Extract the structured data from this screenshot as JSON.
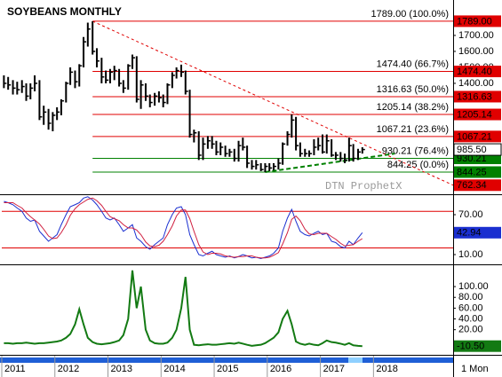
{
  "chart_data": [
    {
      "type": "hlc",
      "title": "SOYBEANS MONTHLY",
      "watermark": "DTN ProphetX",
      "timeframe": "1 Mon",
      "xlim": [
        2011,
        2019.5
      ],
      "xticks": [
        2011,
        2012,
        2013,
        2014,
        2015,
        2016,
        2017,
        2018
      ],
      "ylim": [
        711,
        1894
      ],
      "yticks": [
        {
          "value": 1400,
          "label": "1400.00"
        },
        {
          "value": 1500,
          "label": "1500.00"
        },
        {
          "value": 1600,
          "label": "1600.00"
        },
        {
          "value": 1700,
          "label": "1700.00"
        }
      ],
      "x": [
        2011.04,
        2011.12,
        2011.21,
        2011.29,
        2011.38,
        2011.46,
        2011.54,
        2011.62,
        2011.71,
        2011.79,
        2011.88,
        2011.96,
        2012.04,
        2012.12,
        2012.21,
        2012.29,
        2012.38,
        2012.46,
        2012.54,
        2012.62,
        2012.71,
        2012.79,
        2012.88,
        2012.96,
        2013.04,
        2013.12,
        2013.21,
        2013.29,
        2013.38,
        2013.46,
        2013.54,
        2013.62,
        2013.71,
        2013.79,
        2013.88,
        2013.96,
        2014.04,
        2014.12,
        2014.21,
        2014.29,
        2014.38,
        2014.46,
        2014.54,
        2014.62,
        2014.71,
        2014.79,
        2014.88,
        2014.96,
        2015.04,
        2015.12,
        2015.21,
        2015.29,
        2015.38,
        2015.46,
        2015.54,
        2015.62,
        2015.71,
        2015.79,
        2015.88,
        2015.96,
        2016.04,
        2016.12,
        2016.21,
        2016.29,
        2016.38,
        2016.46,
        2016.54,
        2016.62,
        2016.71,
        2016.79,
        2016.88,
        2016.96,
        2017.04,
        2017.12,
        2017.21,
        2017.29,
        2017.38,
        2017.46,
        2017.54,
        2017.62,
        2017.71,
        2017.79
      ],
      "series": [
        {
          "color": "#000000",
          "last_tag": true,
          "high": [
            1450,
            1440,
            1420,
            1410,
            1420,
            1400,
            1400,
            1450,
            1420,
            1260,
            1240,
            1220,
            1250,
            1300,
            1410,
            1500,
            1480,
            1520,
            1690,
            1780,
            1789,
            1620,
            1560,
            1480,
            1490,
            1510,
            1490,
            1420,
            1520,
            1580,
            1570,
            1420,
            1400,
            1330,
            1340,
            1350,
            1330,
            1400,
            1470,
            1500,
            1517,
            1480,
            1360,
            1110,
            1100,
            1060,
            1070,
            1070,
            1040,
            1030,
            1010,
            990,
            990,
            1040,
            1060,
            1010,
            920,
            920,
            900,
            900,
            900,
            900,
            930,
            1030,
            1100,
            1205.14,
            1190,
            1030,
            990,
            980,
            1050,
            1060,
            1080,
            1080,
            1050,
            970,
            970,
            960,
            1060,
            1020,
            990,
            1000
          ],
          "low": [
            1370,
            1360,
            1330,
            1330,
            1340,
            1290,
            1300,
            1350,
            1170,
            1140,
            1110,
            1100,
            1170,
            1200,
            1280,
            1390,
            1370,
            1380,
            1500,
            1630,
            1580,
            1500,
            1400,
            1400,
            1400,
            1420,
            1380,
            1340,
            1360,
            1490,
            1280,
            1240,
            1290,
            1250,
            1260,
            1280,
            1250,
            1270,
            1370,
            1430,
            1440,
            1330,
            1060,
            1030,
            920,
            920,
            990,
            990,
            950,
            950,
            940,
            940,
            910,
            910,
            980,
            870,
            860,
            860,
            850,
            844.25,
            850,
            855,
            860,
            890,
            1010,
            1060,
            980,
            940,
            940,
            940,
            950,
            980,
            960,
            960,
            940,
            920,
            910,
            900,
            910,
            910,
            920,
            960
          ],
          "close": [
            1400,
            1390,
            1370,
            1360,
            1380,
            1320,
            1370,
            1400,
            1190,
            1220,
            1150,
            1200,
            1220,
            1290,
            1400,
            1470,
            1410,
            1510,
            1660,
            1740,
            1600,
            1540,
            1440,
            1420,
            1470,
            1480,
            1400,
            1370,
            1510,
            1560,
            1300,
            1390,
            1320,
            1280,
            1320,
            1310,
            1280,
            1390,
            1450,
            1480,
            1470,
            1350,
            1080,
            1090,
            950,
            1020,
            1040,
            1020,
            970,
            1000,
            960,
            970,
            930,
            1010,
            1000,
            900,
            880,
            890,
            860,
            880,
            870,
            880,
            900,
            1020,
            1080,
            1170,
            1010,
            960,
            960,
            960,
            1000,
            1010,
            970,
            1040,
            950,
            950,
            930,
            920,
            1010,
            930,
            970,
            985.5
          ],
          "value_labels": [
            null,
            null,
            null,
            null,
            null,
            null,
            null,
            null,
            null,
            null,
            null,
            null,
            null,
            null,
            null,
            null,
            null,
            null,
            null,
            null,
            null,
            null,
            null,
            null,
            null,
            null,
            null,
            null,
            null,
            null,
            null,
            null,
            null,
            null,
            null,
            null,
            null,
            null,
            null,
            null,
            null,
            null,
            null,
            null,
            null,
            null,
            null,
            null,
            null,
            null,
            null,
            null,
            null,
            null,
            null,
            null,
            null,
            null,
            null,
            null,
            null,
            null,
            null,
            null,
            null,
            null,
            null,
            null,
            null,
            null,
            null,
            null,
            null,
            null,
            null,
            null,
            null,
            null,
            null,
            null,
            null,
            "985.50"
          ]
        }
      ],
      "levels": [
        {
          "value": 1789,
          "label": "1789.00 (100.0%)",
          "tag": "1789.00",
          "color": "#e00000"
        },
        {
          "value": 1474.4,
          "label": "1474.40 (66.7%)",
          "tag": "1474.40",
          "color": "#e00000"
        },
        {
          "value": 1316.63,
          "label": "1316.63 (50.0%)",
          "tag": "1316.63",
          "color": "#e00000"
        },
        {
          "value": 1205.14,
          "label": "1205.14 (38.2%)",
          "tag": "1205.14",
          "color": "#e00000"
        },
        {
          "value": 1067.21,
          "label": "1067.21 (23.6%)",
          "tag": "1067.21",
          "color": "#e00000"
        },
        {
          "value": 930.21,
          "label": "930.21 (76.4%)",
          "tag": "930.21",
          "color": "#008000"
        },
        {
          "value": 844.25,
          "label": "844.25 (0.0%)",
          "tag": "844.25",
          "color": "#008000"
        }
      ],
      "trendlines": [
        {
          "color": "#e00000",
          "x": [
            2012.71,
            2019.5
          ],
          "y": [
            1789,
            762.34
          ],
          "tag_end": true
        },
        {
          "color": "#008000",
          "x": [
            2015.96,
            2018.4
          ],
          "y": [
            844.25,
            960
          ]
        }
      ]
    },
    {
      "type": "line",
      "xlim": [
        2011,
        2019.5
      ],
      "ylim": [
        -2,
        98
      ],
      "yticks": [
        {
          "value": 10,
          "label": "10.00"
        },
        {
          "value": 70,
          "label": "70.00"
        }
      ],
      "levels": [
        {
          "value": 75,
          "color": "#e00000"
        },
        {
          "value": 20,
          "color": "#e00000"
        }
      ],
      "x": [
        2011.04,
        2011.12,
        2011.21,
        2011.29,
        2011.38,
        2011.46,
        2011.54,
        2011.62,
        2011.71,
        2011.79,
        2011.88,
        2011.96,
        2012.04,
        2012.12,
        2012.21,
        2012.29,
        2012.38,
        2012.46,
        2012.54,
        2012.62,
        2012.71,
        2012.79,
        2012.88,
        2012.96,
        2013.04,
        2013.12,
        2013.21,
        2013.29,
        2013.38,
        2013.46,
        2013.54,
        2013.62,
        2013.71,
        2013.79,
        2013.88,
        2013.96,
        2014.04,
        2014.12,
        2014.21,
        2014.29,
        2014.38,
        2014.46,
        2014.54,
        2014.62,
        2014.71,
        2014.79,
        2014.88,
        2014.96,
        2015.04,
        2015.12,
        2015.21,
        2015.29,
        2015.38,
        2015.46,
        2015.54,
        2015.62,
        2015.71,
        2015.79,
        2015.88,
        2015.96,
        2016.04,
        2016.12,
        2016.21,
        2016.29,
        2016.38,
        2016.46,
        2016.54,
        2016.62,
        2016.71,
        2016.79,
        2016.88,
        2016.96,
        2017.04,
        2017.12,
        2017.21,
        2017.29,
        2017.38,
        2017.46,
        2017.54,
        2017.62,
        2017.71,
        2017.79
      ],
      "series": [
        {
          "color": "#1a2fd0",
          "last_tag": true,
          "values": [
            90,
            88,
            85,
            80,
            75,
            65,
            60,
            62,
            45,
            38,
            30,
            35,
            40,
            55,
            70,
            82,
            85,
            88,
            95,
            97,
            92,
            85,
            75,
            65,
            62,
            65,
            55,
            45,
            50,
            55,
            35,
            30,
            22,
            18,
            25,
            30,
            35,
            55,
            70,
            80,
            82,
            70,
            40,
            25,
            10,
            8,
            12,
            15,
            10,
            8,
            6,
            8,
            5,
            7,
            10,
            8,
            5,
            6,
            4,
            6,
            8,
            12,
            20,
            45,
            65,
            78,
            60,
            45,
            40,
            38,
            42,
            45,
            40,
            42,
            30,
            28,
            22,
            20,
            30,
            25,
            35,
            42.94
          ]
        },
        {
          "color": "#d02040",
          "values": [
            88,
            88,
            88,
            84,
            80,
            73,
            67,
            62,
            56,
            48,
            38,
            34,
            35,
            43,
            55,
            69,
            79,
            85,
            89,
            93,
            95,
            91,
            84,
            75,
            67,
            64,
            61,
            55,
            50,
            50,
            47,
            40,
            29,
            23,
            22,
            24,
            30,
            40,
            53,
            68,
            77,
            77,
            64,
            45,
            25,
            14,
            10,
            12,
            12,
            11,
            8,
            7,
            6,
            7,
            7,
            8,
            8,
            6,
            5,
            5,
            6,
            9,
            13,
            26,
            43,
            63,
            68,
            61,
            48,
            41,
            40,
            42,
            42,
            42,
            37,
            33,
            27,
            23,
            24,
            25,
            30,
            34
          ]
        }
      ]
    },
    {
      "type": "line",
      "xlim": [
        2011,
        2019.5
      ],
      "ylim": [
        -25,
        138
      ],
      "yticks": [
        {
          "value": 20,
          "label": "20.00"
        },
        {
          "value": 40,
          "label": "40.00"
        },
        {
          "value": 60,
          "label": "60.00"
        },
        {
          "value": 80,
          "label": "80.00"
        },
        {
          "value": 100,
          "label": "100.00"
        }
      ],
      "x": [
        2011.04,
        2011.12,
        2011.21,
        2011.29,
        2011.38,
        2011.46,
        2011.54,
        2011.62,
        2011.71,
        2011.79,
        2011.88,
        2011.96,
        2012.04,
        2012.12,
        2012.21,
        2012.29,
        2012.38,
        2012.46,
        2012.54,
        2012.62,
        2012.71,
        2012.79,
        2012.88,
        2012.96,
        2013.04,
        2013.12,
        2013.21,
        2013.29,
        2013.38,
        2013.46,
        2013.54,
        2013.62,
        2013.71,
        2013.79,
        2013.88,
        2013.96,
        2014.04,
        2014.12,
        2014.21,
        2014.29,
        2014.38,
        2014.46,
        2014.54,
        2014.62,
        2014.71,
        2014.79,
        2014.88,
        2014.96,
        2015.04,
        2015.12,
        2015.21,
        2015.29,
        2015.38,
        2015.46,
        2015.54,
        2015.62,
        2015.71,
        2015.79,
        2015.88,
        2015.96,
        2016.04,
        2016.12,
        2016.21,
        2016.29,
        2016.38,
        2016.46,
        2016.54,
        2016.62,
        2016.71,
        2016.79,
        2016.88,
        2016.96,
        2017.04,
        2017.12,
        2017.21,
        2017.29,
        2017.38,
        2017.46,
        2017.54,
        2017.62,
        2017.71,
        2017.79
      ],
      "series": [
        {
          "color": "#137a13",
          "last_tag": true,
          "values": [
            -5,
            -5,
            -6,
            -5,
            -5,
            -4,
            -5,
            -6,
            -5,
            -5,
            -4,
            -3,
            -2,
            0,
            5,
            12,
            30,
            58,
            30,
            5,
            -3,
            -6,
            -7,
            -6,
            -5,
            -3,
            0,
            10,
            40,
            130,
            60,
            100,
            20,
            0,
            -5,
            -6,
            -6,
            -4,
            5,
            20,
            60,
            118,
            20,
            -8,
            -9,
            -8,
            -7,
            -8,
            -8,
            -7,
            -6,
            -5,
            -6,
            -4,
            -6,
            -8,
            -10,
            -9,
            -8,
            -5,
            0,
            5,
            15,
            40,
            55,
            30,
            -2,
            -6,
            -8,
            -6,
            -8,
            -9,
            -5,
            0,
            -3,
            -4,
            -6,
            -8,
            -5,
            -9,
            -10,
            -10.5
          ],
          "value_labels": [
            null,
            null,
            null,
            null,
            null,
            null,
            null,
            null,
            null,
            null,
            null,
            null,
            null,
            null,
            null,
            null,
            null,
            null,
            null,
            null,
            null,
            null,
            null,
            null,
            null,
            null,
            null,
            null,
            null,
            null,
            null,
            null,
            null,
            null,
            null,
            null,
            null,
            null,
            null,
            null,
            null,
            null,
            null,
            null,
            null,
            null,
            null,
            null,
            null,
            null,
            null,
            null,
            null,
            null,
            null,
            null,
            null,
            null,
            null,
            null,
            null,
            null,
            null,
            null,
            null,
            null,
            null,
            null,
            null,
            null,
            null,
            null,
            null,
            null,
            null,
            null,
            null,
            null,
            null,
            null,
            null,
            "-10.50"
          ]
        }
      ]
    }
  ]
}
